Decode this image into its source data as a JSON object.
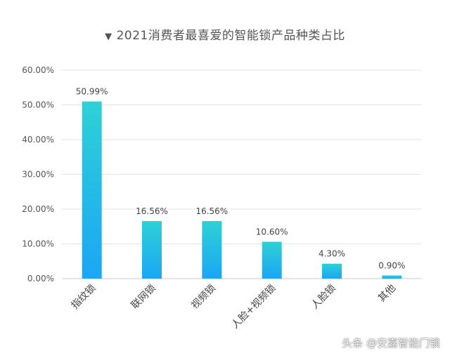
{
  "chart_data": {
    "type": "bar",
    "title": "2021消费者最喜爱的智能锁产品种类占比",
    "categories": [
      "指纹锁",
      "联网锁",
      "视频锁",
      "人脸+视频锁",
      "人脸锁",
      "其他"
    ],
    "values": [
      50.99,
      16.56,
      16.56,
      10.6,
      4.3,
      0.9
    ],
    "value_labels": [
      "50.99%",
      "16.56%",
      "16.56%",
      "10.60%",
      "4.30%",
      "0.90%"
    ],
    "y_ticks": [
      "0.00%",
      "10.00%",
      "20.00%",
      "30.00%",
      "40.00%",
      "50.00%",
      "60.00%"
    ],
    "ylim": [
      0,
      60
    ],
    "grid": true,
    "legend": "none",
    "bar_gradient": {
      "top": "#2ed1d6",
      "bottom": "#1ba6f5"
    }
  },
  "title_marker": "▼",
  "watermark": "头条 @安嘉智能门锁"
}
